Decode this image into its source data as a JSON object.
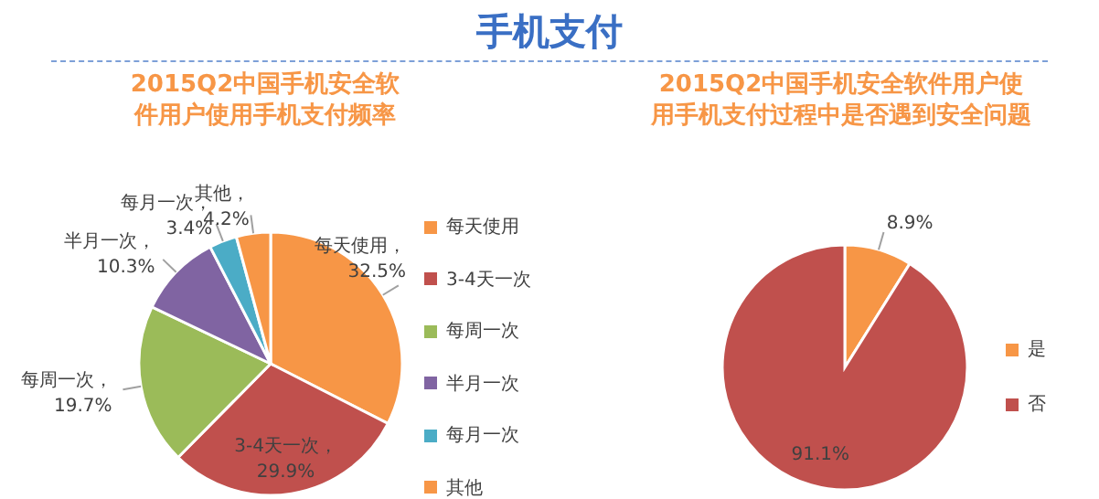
{
  "chart_data": [
    {
      "type": "pie",
      "title": "2015Q2中国手机安全软件用户使用手机支付频率",
      "annotations": [
        "手机支付"
      ],
      "categories": [
        "每天使用",
        "3-4天一次",
        "每周一次",
        "半月一次",
        "每月一次",
        "其他"
      ],
      "values": [
        32.5,
        29.9,
        19.7,
        10.3,
        3.4,
        4.2
      ],
      "colors": [
        "#f79646",
        "#c0504d",
        "#9bbb59",
        "#8064a2",
        "#4bacc6",
        "#f79646"
      ],
      "value_labels": [
        "每天使用，32.5%",
        "3-4天一次，29.9%",
        "每周一次，19.7%",
        "半月一次，10.3%",
        "每月一次，3.4%",
        "其他，4.2%"
      ],
      "legend": "right"
    },
    {
      "type": "pie",
      "title": "2015Q2中国手机安全软件用户使用手机支付过程中是否遇到安全问题",
      "categories": [
        "是",
        "否"
      ],
      "values": [
        8.9,
        91.1
      ],
      "colors": [
        "#f79646",
        "#c0504d"
      ],
      "value_labels": [
        "8.9%",
        "91.1%"
      ],
      "legend": "right"
    }
  ]
}
